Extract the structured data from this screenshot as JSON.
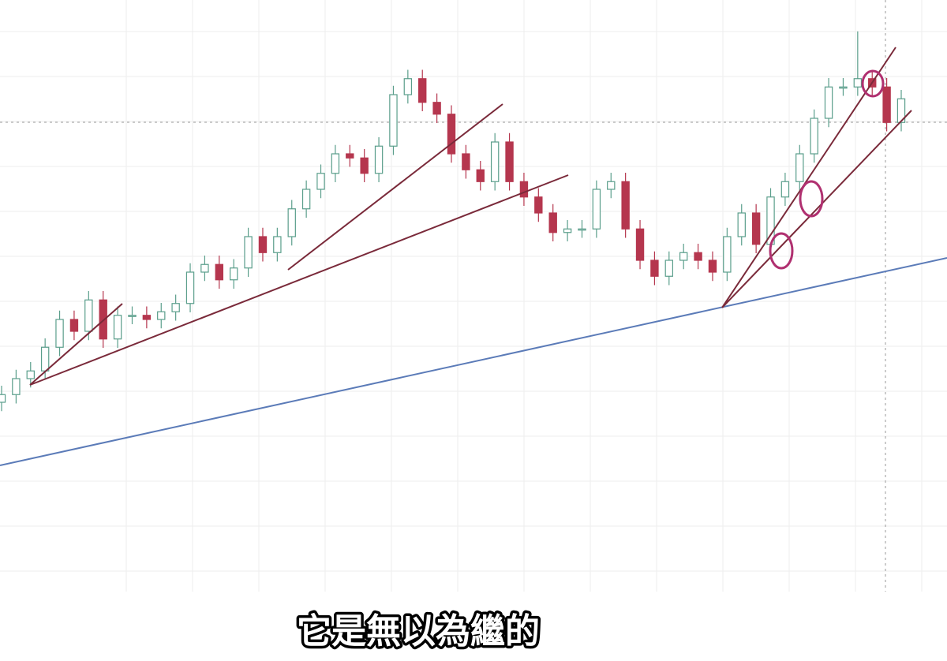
{
  "chart_data": {
    "type": "candlestick",
    "ylim": [
      0,
      100
    ],
    "open": [
      32,
      33.3,
      36,
      37.3,
      41.3,
      46,
      44,
      49.3,
      42.7,
      46.7,
      46.7,
      46,
      47.3,
      48.7,
      54,
      55.3,
      52.7,
      54.7,
      60,
      57.3,
      60,
      64.7,
      68,
      70.7,
      74,
      73.3,
      70.7,
      75.3,
      84,
      86.7,
      82.7,
      80.7,
      74,
      71.3,
      69.3,
      76,
      69.3,
      66.7,
      64,
      60.7,
      61.3,
      61.3,
      68,
      69.3,
      61.3,
      56,
      53.3,
      56,
      57.3,
      56,
      54,
      60,
      64,
      58.7,
      66.7,
      69.3,
      74,
      80,
      85.3,
      85.3,
      86.7,
      85.3,
      79.3
    ],
    "high": [
      34.8,
      37.5,
      38.8,
      42.8,
      47.5,
      47.5,
      50.8,
      50.8,
      48.2,
      48.2,
      48.2,
      48.8,
      50.2,
      55.5,
      56.8,
      56.8,
      56.2,
      61.5,
      61.5,
      61.5,
      66.2,
      69.5,
      72.2,
      75.5,
      75.5,
      74.8,
      76.8,
      85.5,
      88.2,
      88.2,
      84.2,
      82.2,
      75.5,
      72.8,
      77.5,
      77.5,
      70.8,
      68.2,
      65.5,
      62.8,
      62.8,
      69.5,
      70.8,
      70.8,
      62.8,
      57.5,
      57.5,
      58.8,
      58.8,
      57.5,
      61.5,
      65.5,
      65.5,
      68.2,
      70.8,
      75.5,
      81.5,
      86.8,
      86.8,
      94.7,
      88.2,
      86.8,
      84.8
    ],
    "low": [
      30.5,
      31.8,
      34.5,
      35.8,
      39.8,
      42.5,
      42.5,
      41.2,
      41.2,
      45.2,
      44.5,
      44.5,
      45.8,
      47.2,
      52.5,
      51.2,
      51.2,
      53.2,
      55.8,
      55.8,
      58.5,
      63.2,
      66.5,
      69.2,
      71.8,
      69.2,
      69.2,
      73.8,
      82.5,
      81.2,
      79.2,
      72.5,
      69.8,
      67.8,
      67.8,
      67.8,
      65.2,
      62.5,
      59.2,
      59.2,
      59.8,
      59.8,
      66.5,
      59.8,
      54.5,
      51.8,
      51.8,
      54.5,
      54.5,
      52.5,
      52.5,
      58.5,
      57.2,
      57.2,
      65.2,
      67.8,
      72.5,
      78.5,
      83.8,
      83.8,
      83.8,
      77.8,
      77.8
    ],
    "close": [
      33.3,
      36,
      37.3,
      41.3,
      46,
      44,
      49.3,
      42.7,
      46.7,
      46.7,
      46,
      47.3,
      48.7,
      54,
      55.3,
      52.7,
      54.7,
      60,
      57.3,
      60,
      64.7,
      68,
      70.7,
      74,
      73.3,
      70.7,
      75.3,
      84,
      86.7,
      82.7,
      80.7,
      74,
      71.3,
      69.3,
      76,
      69.3,
      66.7,
      64,
      60.7,
      61.3,
      61.3,
      68,
      69.3,
      61.3,
      56,
      53.3,
      56,
      57.3,
      56,
      54,
      60,
      64,
      58.7,
      66.7,
      69.3,
      74,
      80,
      85.3,
      85.3,
      86.7,
      85.3,
      79.3,
      83.3
    ],
    "up_color": "#5a9e8b",
    "down_color": "#b5364e"
  },
  "caption": "它是無以為繼的"
}
